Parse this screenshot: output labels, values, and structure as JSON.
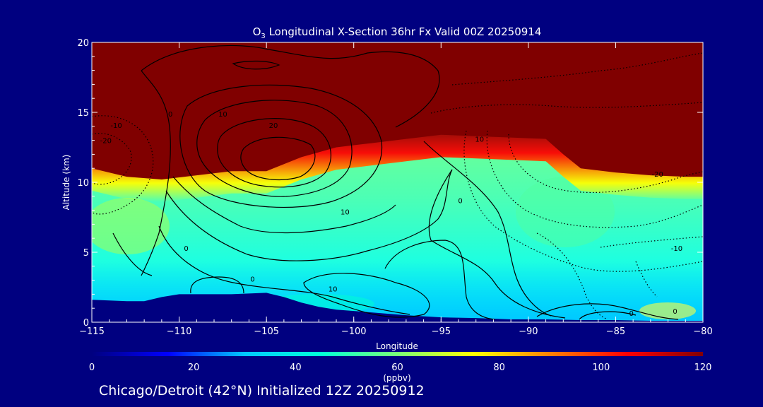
{
  "chart_data": {
    "type": "heatmap",
    "title_prefix": "O",
    "title_subscript": "3",
    "title_rest": " Longitudinal X-Section 36hr  Fx Valid 00Z 20250914",
    "xlabel": "Longitude",
    "ylabel": "Altitude (km)",
    "xlim": [
      -115,
      -80
    ],
    "ylim": [
      0,
      20
    ],
    "xticks": [
      -115,
      -110,
      -105,
      -100,
      -95,
      -90,
      -85,
      -80
    ],
    "xtick_labels": [
      "−115",
      "−110",
      "−105",
      "−100",
      "−95",
      "−90",
      "−85",
      "−80"
    ],
    "yticks": [
      0,
      5,
      10,
      15,
      20
    ],
    "ytick_labels": [
      "0",
      "5",
      "10",
      "15",
      "20"
    ],
    "colorbar": {
      "vmin": 0,
      "vmax": 120,
      "ticks": [
        0,
        20,
        40,
        60,
        80,
        100,
        120
      ],
      "tick_labels": [
        "0",
        "20",
        "40",
        "60",
        "80",
        "100",
        "120"
      ],
      "label": "(ppbv)",
      "colors": [
        "#000080",
        "#0000ff",
        "#00c8ff",
        "#00ffd8",
        "#78ff78",
        "#ffff00",
        "#ff8000",
        "#ff0000",
        "#800000"
      ]
    },
    "tropopause_height_km": {
      "lon": [
        -115,
        -113,
        -111,
        -109,
        -107,
        -105,
        -103,
        -101,
        -99,
        -97,
        -95,
        -93,
        -91,
        -89,
        -88,
        -87,
        -85,
        -83,
        -81,
        -80
      ],
      "z": [
        11,
        10.4,
        10.2,
        10.5,
        10.8,
        10.8,
        11.8,
        12.5,
        12.8,
        13.1,
        13.4,
        13.3,
        13.2,
        13.1,
        12.0,
        11.0,
        10.7,
        10.5,
        10.4,
        10.4
      ]
    },
    "terrain_height_km": {
      "lon": [
        -115,
        -113,
        -112,
        -111,
        -110,
        -109,
        -107,
        -105,
        -104,
        -103,
        -102,
        -101,
        -99,
        -97,
        -95,
        -93,
        -91,
        -89,
        -87,
        -85,
        -83,
        -81,
        -80
      ],
      "z": [
        1.6,
        1.5,
        1.5,
        1.8,
        2.0,
        2.0,
        2.0,
        2.1,
        1.8,
        1.4,
        1.1,
        0.9,
        0.7,
        0.5,
        0.35,
        0.3,
        0.2,
        0.2,
        0.15,
        0.15,
        0.1,
        0.1,
        0.1
      ]
    },
    "contour_labels": [
      {
        "text": "0",
        "lon": -110.5,
        "z": 14.7
      },
      {
        "text": "10",
        "lon": -107.5,
        "z": 14.7
      },
      {
        "text": "20",
        "lon": -104.6,
        "z": 13.9
      },
      {
        "text": "10",
        "lon": -100.5,
        "z": 7.7
      },
      {
        "text": "0",
        "lon": -109.6,
        "z": 5.1
      },
      {
        "text": "0",
        "lon": -105.8,
        "z": 2.9
      },
      {
        "text": "10",
        "lon": -101.2,
        "z": 2.2
      },
      {
        "text": "0",
        "lon": -93.9,
        "z": 8.5
      },
      {
        "text": "10",
        "lon": -92.8,
        "z": 12.9
      },
      {
        "text": "-10",
        "lon": -113.6,
        "z": 13.9
      },
      {
        "text": "-20",
        "lon": -114.2,
        "z": 12.8
      },
      {
        "text": "-20",
        "lon": -82.6,
        "z": 10.4
      },
      {
        "text": "-10",
        "lon": -81.5,
        "z": 5.1
      },
      {
        "text": "0",
        "lon": -84.1,
        "z": 0.45
      },
      {
        "text": "0",
        "lon": -81.6,
        "z": 0.6
      }
    ]
  },
  "footer": "Chicago/Detroit (42°N) Initialized 12Z 20250912"
}
